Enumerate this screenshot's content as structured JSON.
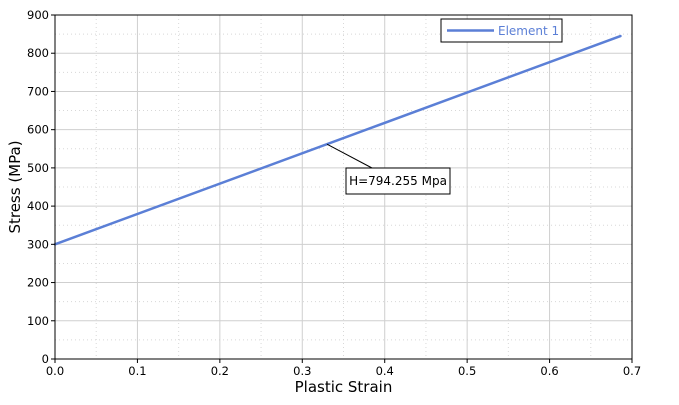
{
  "chart_data": {
    "type": "line",
    "xlabel": "Plastic Strain",
    "ylabel": "Stress  (MPa)",
    "xlim": [
      0,
      0.7
    ],
    "ylim": [
      0,
      900
    ],
    "x_ticks": [
      "0.0",
      "0.1",
      "0.2",
      "0.3",
      "0.4",
      "0.5",
      "0.6",
      "0.7"
    ],
    "y_ticks": [
      "0",
      "100",
      "200",
      "300",
      "400",
      "500",
      "600",
      "700",
      "800",
      "900"
    ],
    "grid": true,
    "minor_grid": true,
    "legend_position": "top-right",
    "series": [
      {
        "name": "Element 1",
        "color": "#5b7fd6",
        "x": [
          0.0,
          0.686
        ],
        "y": [
          300,
          845
        ]
      }
    ],
    "annotations": [
      {
        "text": "H=794.255 Mpa",
        "point_x": 0.33,
        "point_y": 562,
        "box_x": 0.38,
        "box_y": 465
      }
    ]
  }
}
